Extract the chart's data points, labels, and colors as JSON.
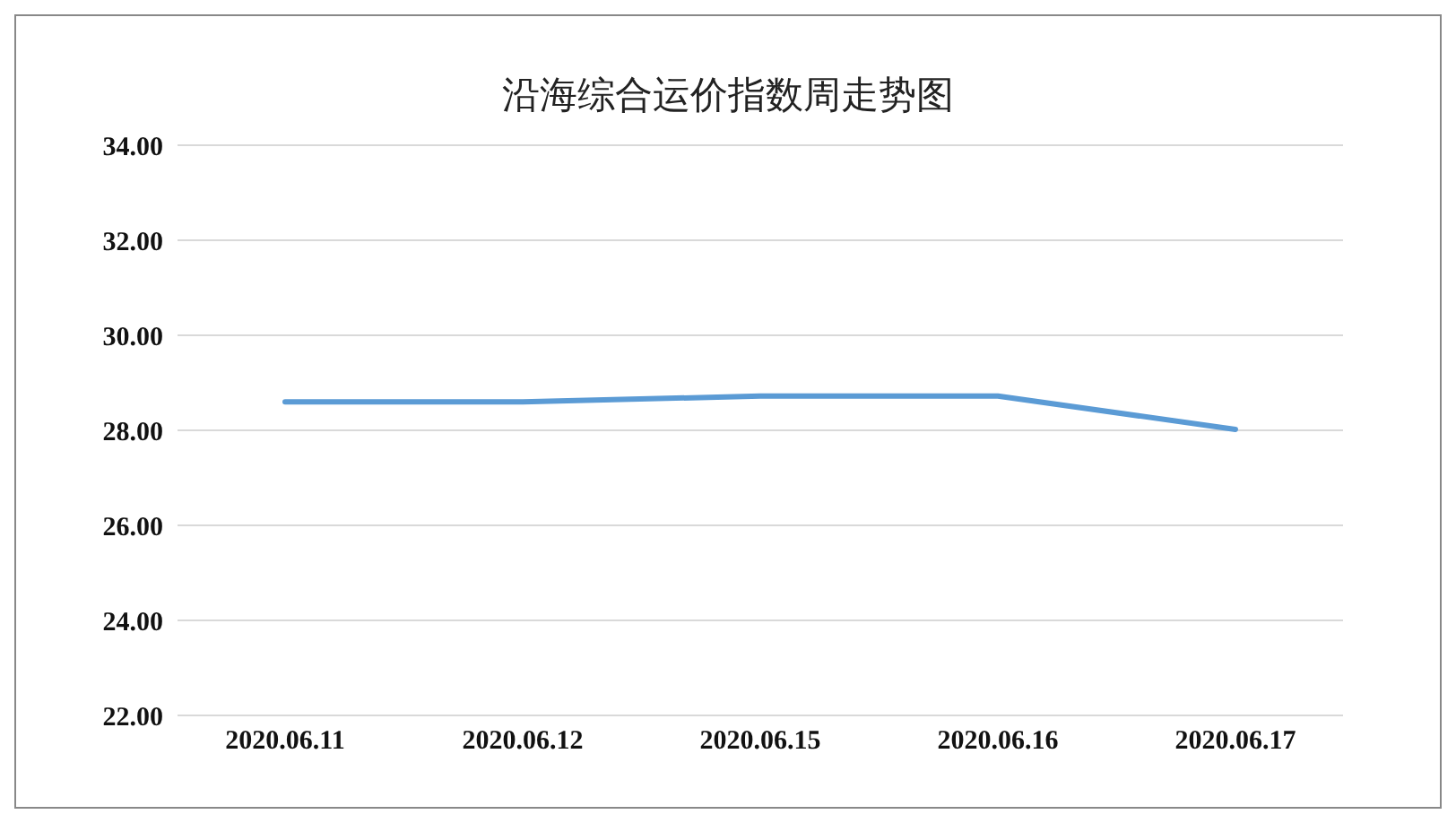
{
  "chart_data": {
    "type": "line",
    "title": "沿海综合运价指数周走势图",
    "categories": [
      "2020.06.11",
      "2020.06.12",
      "2020.06.15",
      "2020.06.16",
      "2020.06.17"
    ],
    "series": [
      {
        "color": "#5b9bd5",
        "values": [
          28.6,
          28.6,
          28.72,
          28.72,
          28.02
        ]
      }
    ],
    "ylim": [
      22,
      34
    ],
    "yticks": [
      {
        "value": 22,
        "label": "22.00"
      },
      {
        "value": 24,
        "label": "24.00"
      },
      {
        "value": 26,
        "label": "26.00"
      },
      {
        "value": 28,
        "label": "28.00"
      },
      {
        "value": 30,
        "label": "30.00"
      },
      {
        "value": 32,
        "label": "32.00"
      },
      {
        "value": 34,
        "label": "34.00"
      }
    ],
    "grid": "y",
    "marker": "none",
    "line_style": "solid",
    "legend": false
  }
}
